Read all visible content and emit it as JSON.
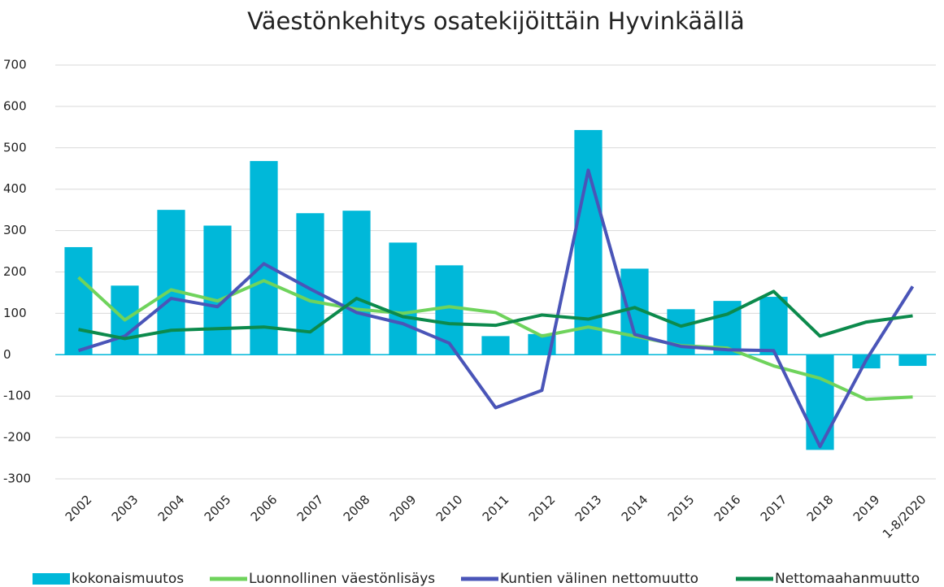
{
  "chart_data": {
    "type": "bar+line",
    "title": "Väestönkehitys osatekijöittäin Hyvinkäällä",
    "categories": [
      "2002",
      "2003",
      "2004",
      "2005",
      "2006",
      "2007",
      "2008",
      "2009",
      "2010",
      "2011",
      "2012",
      "2013",
      "2014",
      "2015",
      "2016",
      "2017",
      "2018",
      "2019",
      "1-8/2020"
    ],
    "series": [
      {
        "name": "kokonaismuutos",
        "type": "bar",
        "color": "#00b8d9",
        "values": [
          260,
          167,
          350,
          312,
          468,
          342,
          348,
          271,
          216,
          45,
          50,
          543,
          208,
          110,
          130,
          140,
          -230,
          -33,
          -27
        ]
      },
      {
        "name": "Luonnollinen väestönlisäys",
        "type": "line",
        "color": "#6fd35c",
        "values": [
          187,
          84,
          157,
          130,
          179,
          130,
          110,
          100,
          116,
          102,
          45,
          67,
          45,
          22,
          16,
          -27,
          -57,
          -108,
          -102
        ]
      },
      {
        "name": "Kuntien välinen nettomuutto",
        "type": "line",
        "color": "#4a55b8",
        "values": [
          10,
          45,
          136,
          116,
          220,
          159,
          102,
          75,
          28,
          -128,
          -86,
          446,
          49,
          20,
          12,
          10,
          -222,
          -12,
          165
        ]
      },
      {
        "name": "Nettomaahanmuutto",
        "type": "line",
        "color": "#0c8a4c",
        "values": [
          61,
          39,
          59,
          63,
          67,
          55,
          136,
          92,
          75,
          71,
          96,
          86,
          114,
          69,
          98,
          153,
          45,
          79,
          94
        ]
      }
    ],
    "ylim": [
      -300,
      700
    ],
    "yticks": [
      -300,
      -200,
      -100,
      0,
      100,
      200,
      300,
      400,
      500,
      600,
      700
    ],
    "grid": true,
    "legend": "bottom"
  }
}
